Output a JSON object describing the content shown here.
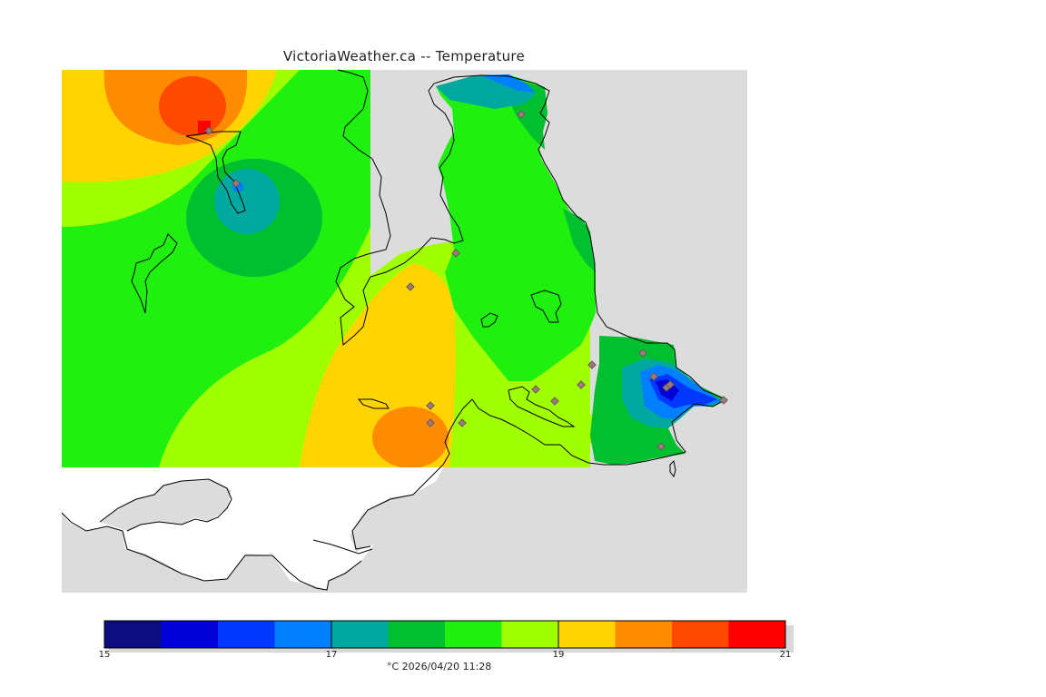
{
  "title": "VictoriaWeather.ca -- Temperature",
  "colorbar": {
    "min": 15,
    "max": 21,
    "ticks": [
      "15",
      "17",
      "19",
      "21"
    ],
    "colors": [
      "#0d0d80",
      "#0000d8",
      "#0038ff",
      "#0080ff",
      "#00a8a0",
      "#00c030",
      "#20f010",
      "#a0ff00",
      "#ffd400",
      "#ff8c00",
      "#ff4800",
      "#ff0000"
    ]
  },
  "units_timestamp": "°C  2026/04/20 11:28",
  "map": {
    "land_background_color": "#dcdcdc",
    "no_data_color": "#ffffff",
    "coastline_color": "#000000",
    "station_marker_color": "#a07878"
  }
}
